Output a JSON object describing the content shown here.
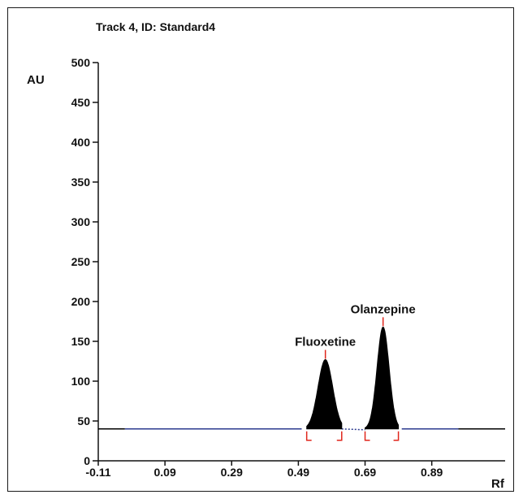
{
  "chart_data": {
    "type": "line",
    "title": "Track 4, ID: Standard4",
    "ylabel": "AU",
    "xlabel": "Rf",
    "xlim": [
      -0.11,
      1.11
    ],
    "ylim": [
      0,
      500
    ],
    "xticks": [
      -0.11,
      0.09,
      0.29,
      0.49,
      0.69,
      0.89
    ],
    "xtick_labels": [
      "-0.11",
      "0.09",
      "0.29",
      "0.49",
      "0.69",
      "0.89"
    ],
    "yticks": [
      0,
      50,
      100,
      150,
      200,
      250,
      300,
      350,
      400,
      450,
      500
    ],
    "ytick_labels": [
      "0",
      "50",
      "100",
      "150",
      "200",
      "250",
      "300",
      "350",
      "400",
      "450",
      "500"
    ],
    "baseline_au": 40,
    "grid": false,
    "colors": {
      "signal": "#000000",
      "baseline": "#2b3a8f",
      "integration_marker": "#e0261c",
      "peak_fill": "#000000"
    },
    "peaks": [
      {
        "name": "Fluoxetine",
        "rf": 0.571,
        "height_au": 127,
        "start_rf": 0.515,
        "end_rf": 0.62,
        "half_width": 0.022
      },
      {
        "name": "Olanzepine",
        "rf": 0.744,
        "height_au": 168,
        "start_rf": 0.69,
        "end_rf": 0.79,
        "half_width": 0.018
      }
    ]
  }
}
